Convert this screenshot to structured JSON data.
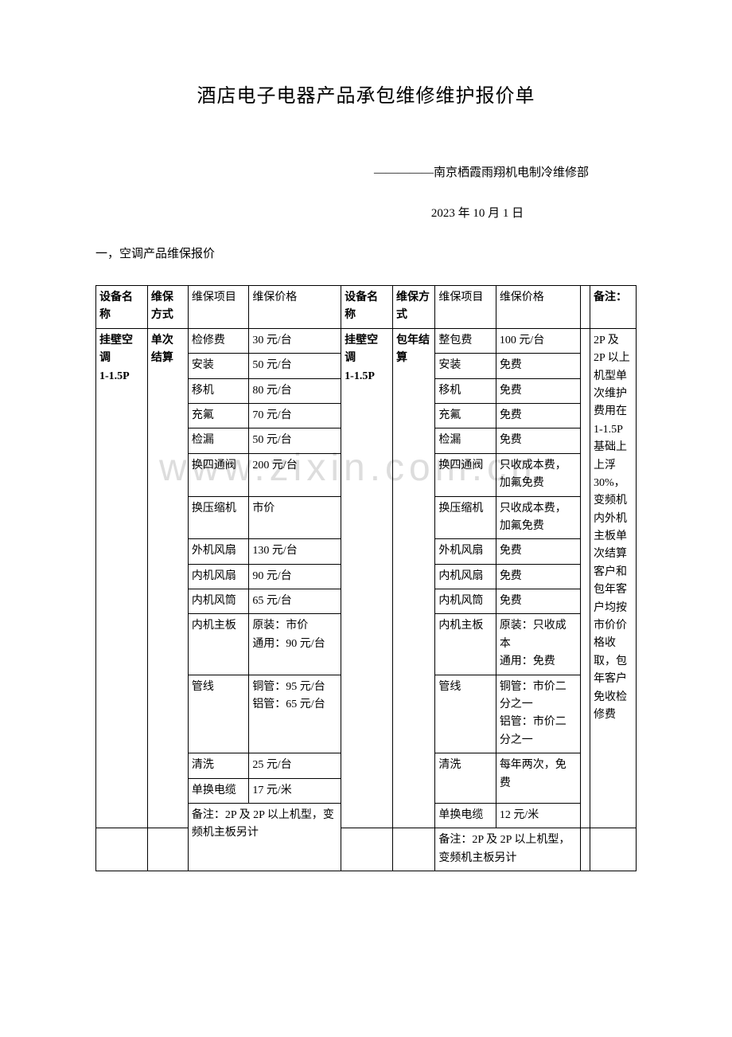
{
  "title": "酒店电子电器产品承包维修维护报价单",
  "subtitle": "—————南京栖霞雨翔机电制冷维修部",
  "date": "2023 年 10 月 1 日",
  "section_heading": "一，空调产品维保报价",
  "watermark": "www.zixin.com.cn",
  "headers": {
    "h1": "设备名称",
    "h2": "维保方式",
    "h3": "维保项目",
    "h4": "维保价格",
    "h5": "设备名称",
    "h6": "维保方式",
    "h7": "维保项目",
    "h8": "维保价格",
    "h9": "备注："
  },
  "left": {
    "device": "挂壁空调\n1-1.5P",
    "method": "单次结算",
    "items": [
      {
        "name": "检修费",
        "price": "30 元/台"
      },
      {
        "name": "安装",
        "price": "50 元/台"
      },
      {
        "name": "移机",
        "price": "80 元/台"
      },
      {
        "name": "充氟",
        "price": "70 元/台"
      },
      {
        "name": "检漏",
        "price": "50 元/台"
      },
      {
        "name": "换四通阀",
        "price": "200 元/台"
      },
      {
        "name": "换压缩机",
        "price": "市价"
      },
      {
        "name": "外机风扇",
        "price": "130 元/台"
      },
      {
        "name": "内机风扇",
        "price": "90 元/台"
      },
      {
        "name": "内机风筒",
        "price": "65 元/台"
      },
      {
        "name": "内机主板",
        "price": "原装：市价\n通用：90 元/台"
      },
      {
        "name": "管线",
        "price": "铜管：95 元/台\n铝管：65 元/台"
      },
      {
        "name": "清洗",
        "price": "25 元/台"
      },
      {
        "name": "单换电缆",
        "price": "17 元/米"
      }
    ],
    "note": "备注：2P 及 2P 以上机型，变频机主板另计"
  },
  "right": {
    "device": "挂壁空调\n1-1.5P",
    "method": "包年结算",
    "items": [
      {
        "name": "整包费",
        "price": "100 元/台"
      },
      {
        "name": "安装",
        "price": "免费"
      },
      {
        "name": "移机",
        "price": "免费"
      },
      {
        "name": "充氟",
        "price": "免费"
      },
      {
        "name": "检漏",
        "price": "免费"
      },
      {
        "name": "换四通阀",
        "price": "只收成本费，加氟免费"
      },
      {
        "name": "换压缩机",
        "price": "只收成本费，加氟免费"
      },
      {
        "name": "外机风扇",
        "price": "免费"
      },
      {
        "name": "内机风扇",
        "price": "免费"
      },
      {
        "name": "内机风筒",
        "price": "免费"
      },
      {
        "name": "内机主板",
        "price": "原装：只收成本\n通用：免费"
      },
      {
        "name": "管线",
        "price": "铜管：市价二分之一\n铝管：市价二分之一"
      },
      {
        "name": "清洗",
        "price": "每年两次，免费"
      },
      {
        "name": "单换电缆",
        "price": "12 元/米"
      }
    ],
    "note": "备注：2P 及 2P 以上机型，变频机主板另计"
  },
  "remark": "2P 及\n2P 以上机型单次维护费用在\n1-1.5P基础上上浮30%，变频机内外机主板单次结算客户和包年客户均按市价价格收取，包年客户免收检修费"
}
